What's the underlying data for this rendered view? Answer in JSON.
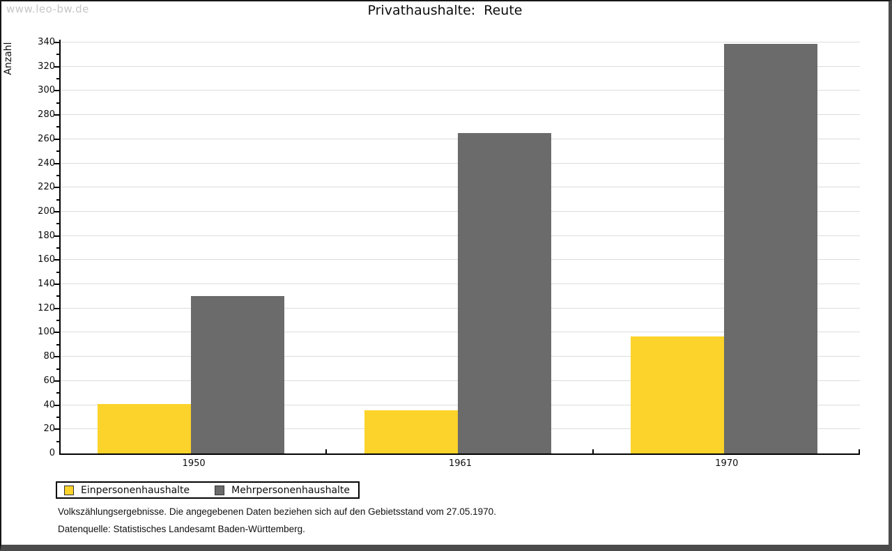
{
  "watermark": "www.leo-bw.de",
  "title_display": "Privathaushalte:  Reute",
  "chart_data": {
    "type": "bar",
    "title": "Privathaushalte: Reute",
    "categories": [
      "1950",
      "1961",
      "1970"
    ],
    "series": [
      {
        "name": "Einpersonenhaushalte",
        "color": "#FCD32B",
        "values": [
          41,
          36,
          97
        ]
      },
      {
        "name": "Mehrpersonenhaushalte",
        "color": "#6B6B6B",
        "values": [
          130,
          265,
          339
        ]
      }
    ],
    "xlabel": "",
    "ylabel": "Anzahl",
    "ylim": [
      0,
      340
    ],
    "ytick_step": 20,
    "yminor_step": 10,
    "grid": true,
    "gridline_color": "#dcdcdc",
    "legend_position": "bottom-left"
  },
  "footnotes": {
    "line1": "Volkszählungsergebnisse. Die angegebenen Daten beziehen sich auf den Gebietsstand vom 27.05.1970.",
    "line2": "Datenquelle: Statistisches Landesamt Baden-Württemberg."
  }
}
